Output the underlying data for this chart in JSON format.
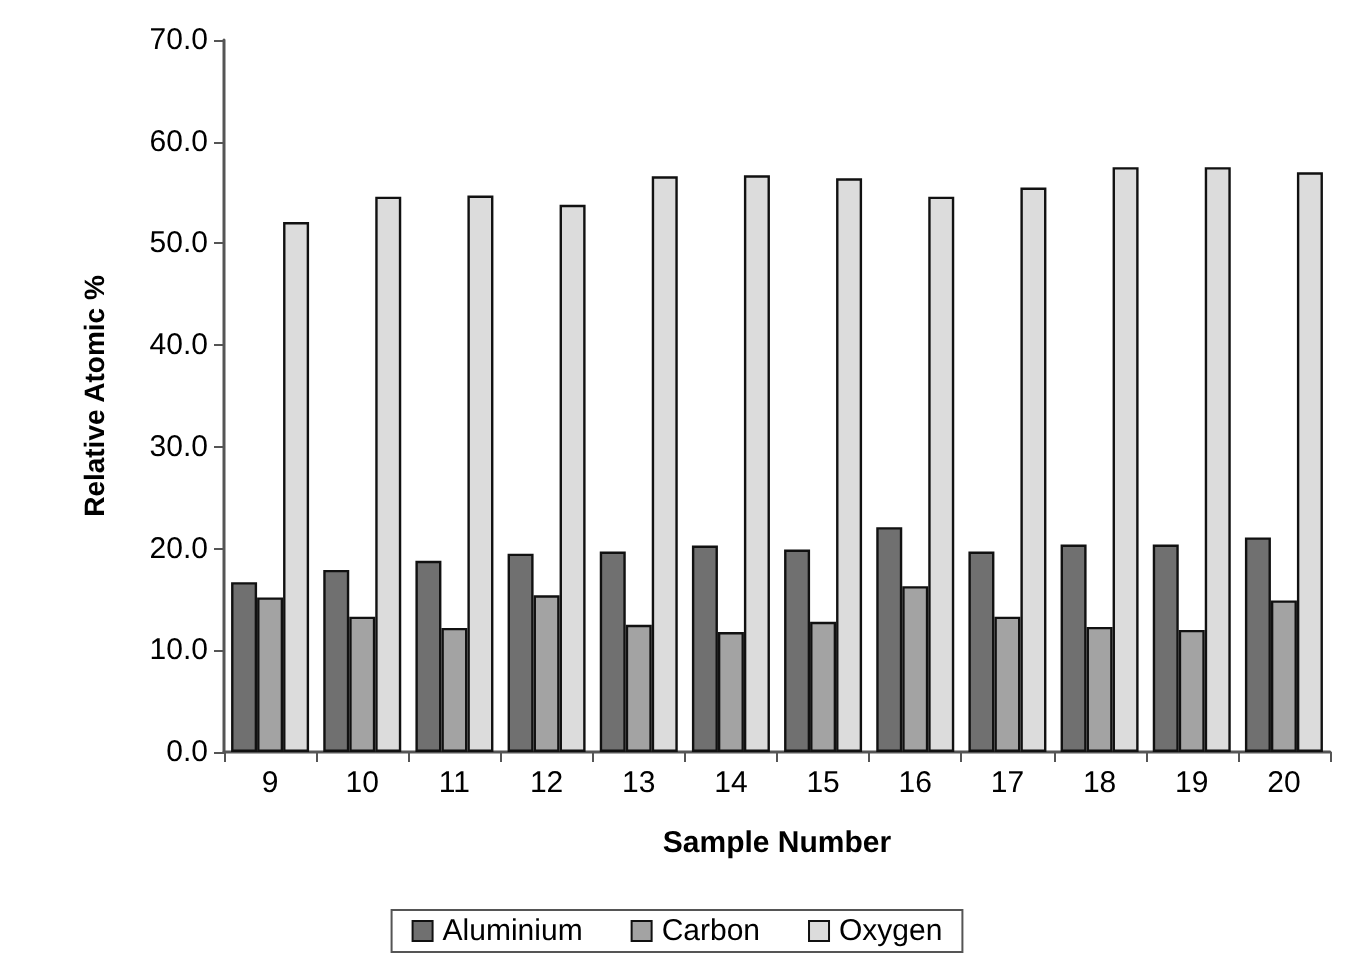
{
  "chart_data": {
    "type": "bar",
    "xlabel": "Sample Number",
    "ylabel": "Relative Atomic %",
    "categories": [
      "9",
      "10",
      "11",
      "12",
      "13",
      "14",
      "15",
      "16",
      "17",
      "18",
      "19",
      "20"
    ],
    "series": [
      {
        "name": "Aluminium",
        "color": "#707070",
        "values": [
          16.7,
          17.9,
          18.8,
          19.5,
          19.7,
          20.3,
          19.9,
          22.1,
          19.7,
          20.4,
          20.4,
          21.1
        ]
      },
      {
        "name": "Carbon",
        "color": "#a3a3a3",
        "values": [
          15.2,
          13.3,
          12.2,
          15.4,
          12.5,
          11.8,
          12.8,
          16.3,
          13.3,
          12.3,
          12.0,
          14.9
        ]
      },
      {
        "name": "Oxygen",
        "color": "#dcdcdc",
        "values": [
          52.1,
          54.6,
          54.7,
          53.8,
          56.6,
          56.7,
          56.4,
          54.6,
          55.5,
          57.5,
          57.5,
          57.0
        ]
      }
    ],
    "ylim": [
      0,
      70
    ],
    "yticks": [
      {
        "value": 0,
        "label": "0.0"
      },
      {
        "value": 10,
        "label": "10.0"
      },
      {
        "value": 20,
        "label": "20.0"
      },
      {
        "value": 30,
        "label": "30.0"
      },
      {
        "value": 40,
        "label": "40.0"
      },
      {
        "value": 50,
        "label": "50.0"
      },
      {
        "value": 60,
        "label": "60.0"
      },
      {
        "value": 70,
        "label": "70.0"
      }
    ],
    "grid": false,
    "legend": "bottom"
  }
}
